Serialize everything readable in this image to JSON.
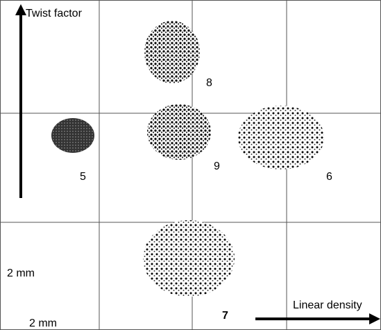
{
  "axes": {
    "y_label": "Twist factor",
    "x_label": "Linear density"
  },
  "scale_labels": [
    "2 mm",
    "2 mm"
  ],
  "samples": [
    "8",
    "5",
    "9",
    "6",
    "7"
  ]
}
